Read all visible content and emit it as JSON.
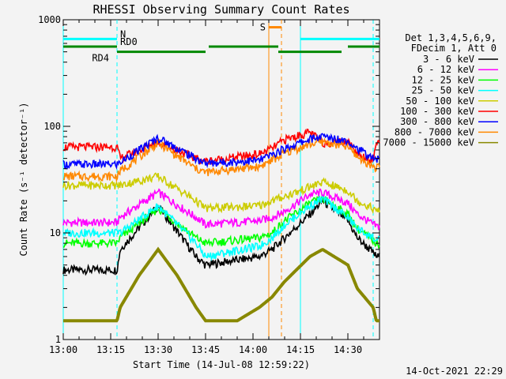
{
  "chart_data": {
    "type": "line",
    "title": "RHESSI Observing Summary Count Rates",
    "xlabel": "Start Time (14-Jul-08 12:59:22)",
    "ylabel": "Count Rate (s⁻¹ detector⁻¹)",
    "yscale": "log",
    "ylim": [
      1,
      1000
    ],
    "xlim_minutes": [
      0,
      100
    ],
    "x_tick_labels": [
      "13:00",
      "13:15",
      "13:30",
      "13:45",
      "14:00",
      "14:15",
      "14:30"
    ],
    "x_tick_minutes": [
      0,
      15,
      30,
      45,
      60,
      75,
      90
    ],
    "y_tick_labels": [
      "1",
      "10",
      "100",
      "1000"
    ],
    "y_tick_values": [
      1,
      10,
      100,
      1000
    ],
    "legend_header": [
      "Det 1,3,4,5,6,9,",
      "FDecim 1, Att 0"
    ],
    "timestamp": "14-Oct-2021 22:29",
    "series": [
      {
        "name": "3 - 6 keV",
        "color": "#000000",
        "x": [
          0,
          17,
          18,
          30,
          42,
          45,
          62,
          66,
          70,
          78,
          82,
          90,
          93,
          98,
          99
        ],
        "y": [
          4.5,
          4.5,
          7,
          18,
          6,
          5,
          6,
          7,
          9,
          15,
          20,
          13,
          9,
          6.5,
          6
        ]
      },
      {
        "name": "6 - 12 keV",
        "color": "#ff00ff",
        "x": [
          0,
          17,
          18,
          30,
          42,
          45,
          62,
          66,
          70,
          78,
          82,
          90,
          93,
          98,
          99
        ],
        "y": [
          12.5,
          12.5,
          14,
          24,
          14,
          12,
          13,
          14,
          16,
          23,
          24,
          19,
          15,
          12,
          11.5
        ]
      },
      {
        "name": "12 - 25 keV",
        "color": "#00ff00",
        "x": [
          0,
          17,
          18,
          30,
          42,
          45,
          62,
          66,
          70,
          78,
          82,
          90,
          93,
          98,
          99
        ],
        "y": [
          8,
          8,
          9,
          17,
          9,
          8,
          9,
          10,
          13,
          19,
          21,
          15,
          11,
          8.5,
          8
        ]
      },
      {
        "name": "25 - 50 keV",
        "color": "#00ffff",
        "x": [
          0,
          17,
          18,
          30,
          42,
          45,
          62,
          66,
          70,
          78,
          82,
          90,
          93,
          98,
          99
        ],
        "y": [
          10,
          10,
          10,
          18,
          8,
          6,
          7.5,
          9,
          12,
          18,
          21,
          14,
          11,
          9,
          8.5
        ]
      },
      {
        "name": "50 - 100 keV",
        "color": "#cccc00",
        "x": [
          0,
          17,
          18,
          30,
          42,
          45,
          62,
          66,
          70,
          78,
          82,
          90,
          93,
          98,
          99
        ],
        "y": [
          28,
          28,
          28,
          34,
          20,
          17,
          18,
          20,
          22,
          27,
          30,
          25,
          20,
          17,
          16
        ]
      },
      {
        "name": "100 - 300 keV",
        "color": "#ff0000",
        "x": [
          0,
          17,
          18,
          30,
          42,
          45,
          62,
          66,
          70,
          78,
          82,
          90,
          93,
          98,
          99
        ],
        "y": [
          64,
          64,
          50,
          72,
          50,
          47,
          55,
          62,
          75,
          88,
          70,
          72,
          55,
          48,
          72
        ]
      },
      {
        "name": "300 - 800 keV",
        "color": "#0000ff",
        "x": [
          0,
          17,
          18,
          30,
          42,
          45,
          62,
          66,
          70,
          78,
          82,
          90,
          93,
          98,
          99
        ],
        "y": [
          44,
          44,
          46,
          78,
          50,
          45,
          48,
          54,
          62,
          76,
          80,
          74,
          62,
          50,
          49
        ]
      },
      {
        "name": "800 - 7000 keV",
        "color": "#ff8800",
        "x": [
          0,
          17,
          18,
          30,
          42,
          45,
          62,
          66,
          70,
          78,
          82,
          90,
          93,
          98,
          99
        ],
        "y": [
          34,
          34,
          38,
          70,
          40,
          37,
          42,
          48,
          56,
          68,
          72,
          64,
          52,
          42,
          41
        ]
      },
      {
        "name": "7000 - 15000 keV",
        "color": "#888800",
        "x": [
          0,
          17,
          18,
          24,
          30,
          36,
          42,
          45,
          55,
          62,
          66,
          70,
          78,
          82,
          90,
          93,
          98,
          99
        ],
        "y": [
          1.5,
          1.5,
          2,
          4,
          7,
          4,
          2,
          1.5,
          1.5,
          2,
          2.5,
          3.5,
          6,
          7,
          5,
          3,
          2,
          1.5
        ]
      }
    ],
    "annotations": {
      "N": {
        "label": "N",
        "color": "#00ffff",
        "y": 660,
        "segments": [
          [
            0,
            17
          ],
          [
            75,
            100
          ]
        ]
      },
      "RD0": {
        "label": "RD0",
        "color": "#008800",
        "y": 560,
        "segments": [
          [
            0,
            17
          ],
          [
            46,
            68
          ],
          [
            90,
            100
          ]
        ]
      },
      "RD4": {
        "label": "RD4",
        "color": "#008800",
        "y": 500,
        "segments": [
          [
            17,
            45
          ],
          [
            68,
            88
          ]
        ]
      },
      "S": {
        "label": "S",
        "color": "#ff8800",
        "y": 850,
        "segments": [
          [
            65,
            69
          ]
        ]
      }
    },
    "vertical_markers": [
      {
        "minute": 0,
        "color": "#00ffff",
        "style": "solid"
      },
      {
        "minute": 17,
        "color": "#00ffff",
        "style": "dashed"
      },
      {
        "minute": 65,
        "color": "#ff8800",
        "style": "solid"
      },
      {
        "minute": 69,
        "color": "#ff8800",
        "style": "dashed"
      },
      {
        "minute": 75,
        "color": "#00ffff",
        "style": "solid"
      },
      {
        "minute": 98,
        "color": "#00ffff",
        "style": "dashed"
      }
    ]
  }
}
